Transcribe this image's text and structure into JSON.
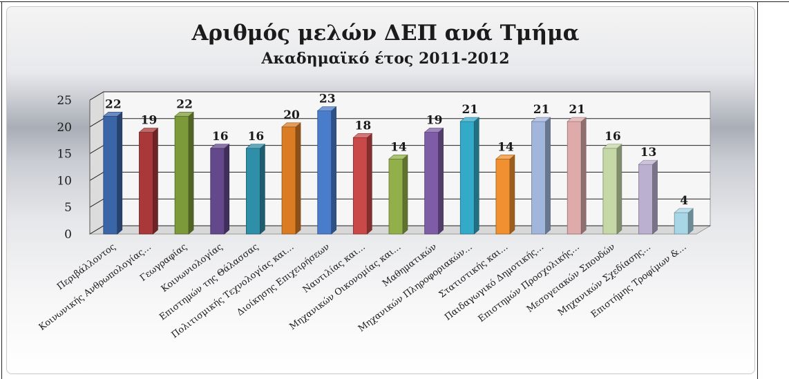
{
  "chart_data": {
    "type": "bar",
    "title": "Αριθμός μελών ΔΕΠ ανά Τμήμα",
    "subtitle": "Ακαδημαϊκό έτος 2011-2012",
    "categories": [
      "Περιβάλλοντος",
      "Κοινωνικής Ανθρωπολογίας…",
      "Γεωγραφίας",
      "Κοινωνιολογίας",
      "Επιστημών της Θάλασσας",
      "Πολιτισμικής Τεχνολογίας και…",
      "Διοίκησης Επιχειρήσεων",
      "Ναυτιλίας και…",
      "Μηχανικών Οικονομίας και…",
      "Μαθηματικών",
      "Μηχανικών Πληροφοριακών…",
      "Στατιστικής και…",
      "Παιδαγωγικό Δημοτικής…",
      "Επιστημών Προσχολικής…",
      "Μεσογειακών Σπουδών",
      "Μηχανικών Σχεδίασης…",
      "Επιστήμης Τροφίμων &…"
    ],
    "values": [
      22,
      19,
      22,
      16,
      16,
      20,
      23,
      18,
      14,
      19,
      21,
      14,
      21,
      21,
      16,
      13,
      4
    ],
    "colors": [
      "#3a66a8",
      "#a8383a",
      "#7d9a3a",
      "#63498c",
      "#2f8ea8",
      "#d97c24",
      "#4a7ccc",
      "#c94848",
      "#92b04a",
      "#7e5ca6",
      "#33aac8",
      "#f09030",
      "#a2b6dc",
      "#deaaaa",
      "#c6d8a6",
      "#bcb0d0",
      "#a8d6e6"
    ],
    "yticks": [
      "0",
      "5",
      "10",
      "15",
      "20",
      "25"
    ],
    "ylim": [
      0,
      25
    ],
    "grid": true,
    "xlabel": "",
    "ylabel": ""
  }
}
